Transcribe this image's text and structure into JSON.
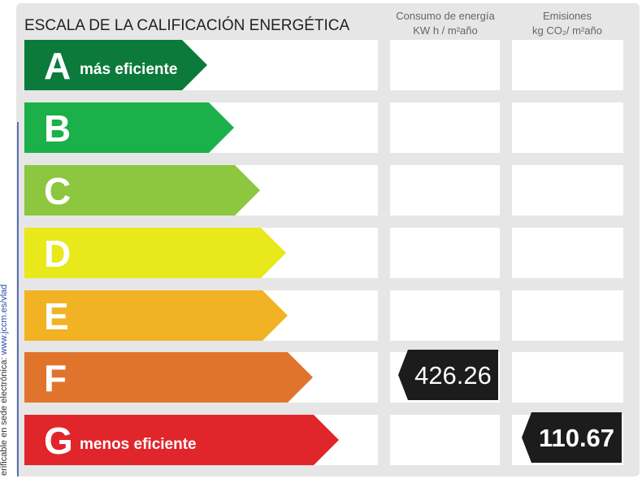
{
  "title": "ESCALA DE LA CALIFICACIÓN ENERGÉTICA",
  "columns": [
    {
      "lines": [
        "Consumo de energía",
        "KW h / m²año"
      ]
    },
    {
      "lines": [
        "Emisiones",
        "kg CO₂/ m²año"
      ]
    }
  ],
  "rows": [
    {
      "letter": "A",
      "label": "más eficiente"
    },
    {
      "letter": "B"
    },
    {
      "letter": "C"
    },
    {
      "letter": "D"
    },
    {
      "letter": "E"
    },
    {
      "letter": "F",
      "consumption": "426.26"
    },
    {
      "letter": "G",
      "label": "menos eficiente",
      "emissions": "110.67"
    }
  ],
  "side_note": {
    "text": "erificable en sede electrónica: ",
    "link": "www.jccm.es/vlad"
  }
}
